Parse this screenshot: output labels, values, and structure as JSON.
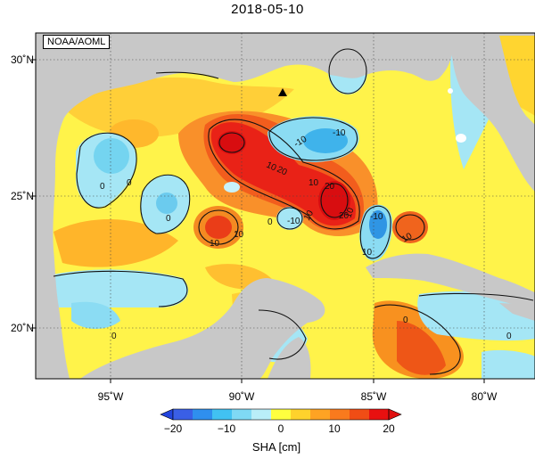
{
  "title": "2018-05-10",
  "credit": "NOAA/AOML",
  "lon_labels": [
    "95˚W",
    "90˚W",
    "85˚W",
    "80˚W"
  ],
  "lat_labels": [
    "30˚N",
    "25˚N",
    "20˚N"
  ],
  "colorbar": {
    "ticks": [
      "−20",
      "−10",
      "0",
      "10",
      "20"
    ],
    "label": "SHA [cm]",
    "colors": [
      "#3a5fe6",
      "#2f8fee",
      "#41c2f2",
      "#7fd9f4",
      "#b9eef8",
      "#ffff3f",
      "#ffd22c",
      "#ffa323",
      "#f97a1d",
      "#f04d15",
      "#e81010"
    ]
  },
  "contour_labels": [
    "10",
    "20",
    "0",
    "-10",
    "10",
    "0",
    "-10",
    "10",
    "0",
    "10",
    "-10",
    "-10",
    "0",
    "10",
    "20",
    "0",
    "10",
    "0",
    "10",
    "20",
    "10",
    "0"
  ],
  "colors": {
    "land": "#c8c8c8",
    "ocean_zero": "#fff44f",
    "positive_mid": "#f6a93a",
    "positive_high": "#ea2516",
    "negative_mid": "#7fd6ef",
    "negative_high": "#2fa8e6"
  }
}
